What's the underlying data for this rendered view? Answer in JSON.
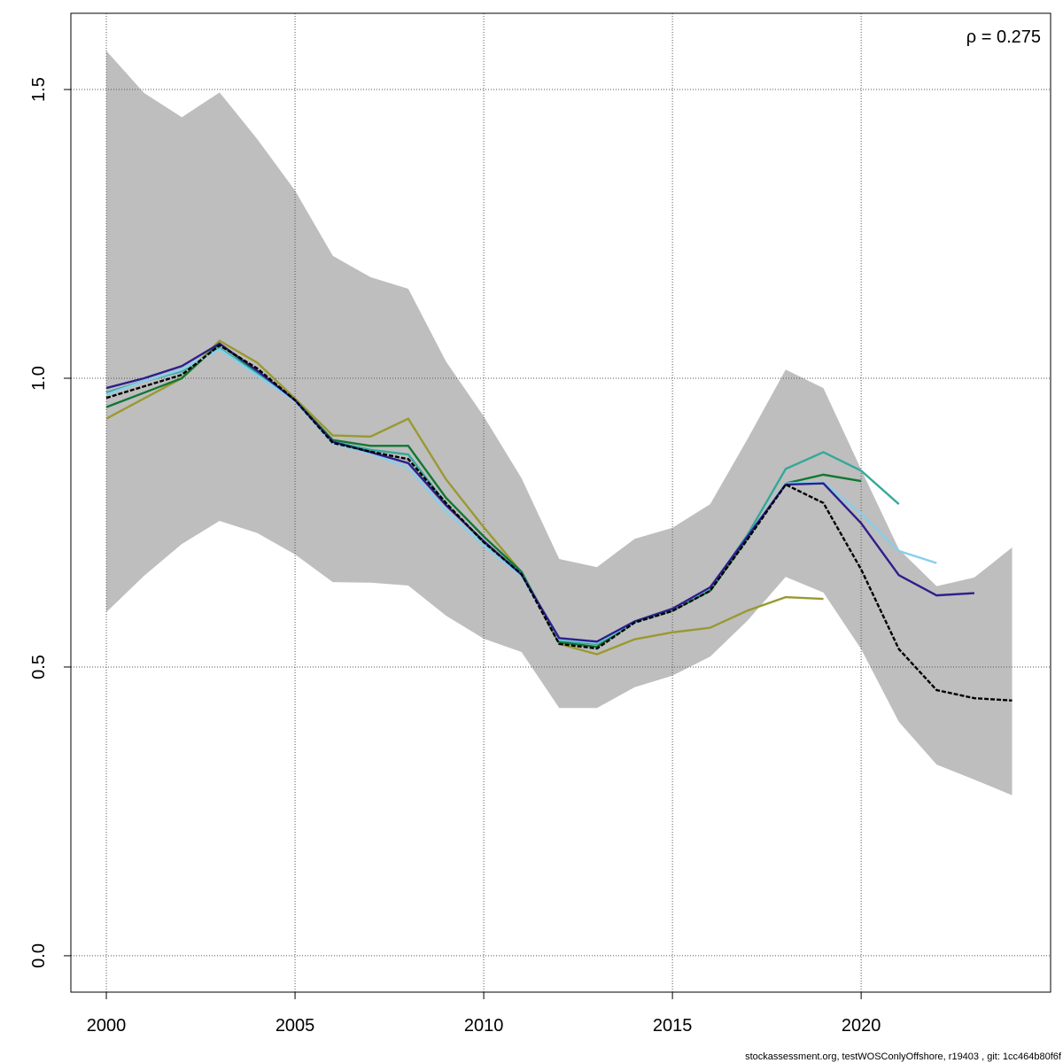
{
  "chart_data": {
    "type": "line",
    "annotation": "ρ = 0.275",
    "footer": "stockassessment.org, testWOSConlyOffshore, r19403 , git: 1cc464b80f6f",
    "x": [
      2000,
      2001,
      2002,
      2003,
      2004,
      2005,
      2006,
      2007,
      2008,
      2009,
      2010,
      2011,
      2012,
      2013,
      2014,
      2015,
      2016,
      2017,
      2018,
      2019,
      2020,
      2021,
      2022,
      2023,
      2024
    ],
    "band": {
      "color": "#bebebe",
      "upper": [
        1.567,
        1.494,
        1.452,
        1.495,
        1.414,
        1.325,
        1.212,
        1.175,
        1.155,
        1.029,
        0.934,
        0.827,
        0.687,
        0.673,
        0.722,
        0.741,
        0.782,
        0.896,
        1.015,
        0.983,
        0.842,
        0.704,
        0.64,
        0.655,
        0.707
      ],
      "lower": [
        0.595,
        0.658,
        0.713,
        0.753,
        0.732,
        0.695,
        0.647,
        0.646,
        0.641,
        0.589,
        0.549,
        0.526,
        0.429,
        0.429,
        0.465,
        0.485,
        0.518,
        0.581,
        0.656,
        0.629,
        0.531,
        0.405,
        0.331,
        0.305,
        0.278
      ]
    },
    "series": [
      {
        "color": "#999933",
        "values": [
          0.93,
          0.965,
          1.0,
          1.065,
          1.027,
          0.965,
          0.901,
          0.899,
          0.93,
          0.825,
          0.742,
          0.664,
          0.54,
          0.522,
          0.548,
          0.56,
          0.568,
          0.598,
          0.621,
          0.618,
          null,
          null,
          null,
          null,
          null
        ]
      },
      {
        "color": "#117733",
        "values": [
          0.95,
          0.975,
          1.0,
          1.06,
          1.01,
          0.962,
          0.893,
          0.883,
          0.883,
          0.793,
          0.726,
          0.665,
          0.543,
          0.535,
          0.578,
          0.598,
          0.632,
          0.724,
          0.818,
          0.833,
          0.822,
          null,
          null,
          null,
          null
        ]
      },
      {
        "color": "#33a89a",
        "values": [
          0.975,
          0.995,
          1.012,
          1.052,
          1.008,
          0.962,
          0.89,
          0.876,
          0.868,
          0.782,
          0.716,
          0.662,
          0.546,
          0.54,
          0.578,
          0.6,
          0.636,
          0.73,
          0.843,
          0.872,
          0.84,
          0.782,
          null,
          null,
          null
        ]
      },
      {
        "color": "#87ceeb",
        "values": [
          0.972,
          0.995,
          1.015,
          1.05,
          1.005,
          0.96,
          0.887,
          0.87,
          0.845,
          0.77,
          0.71,
          0.658,
          0.548,
          0.542,
          0.578,
          0.6,
          0.637,
          0.727,
          0.818,
          0.82,
          0.765,
          0.701,
          0.68,
          null,
          null
        ]
      },
      {
        "color": "#2e1e8c",
        "values": [
          0.983,
          1.0,
          1.021,
          1.06,
          1.013,
          0.962,
          0.89,
          0.872,
          0.853,
          0.78,
          0.718,
          0.66,
          0.55,
          0.544,
          0.579,
          0.601,
          0.638,
          0.727,
          0.816,
          0.818,
          0.749,
          0.659,
          0.624,
          0.628,
          null
        ]
      },
      {
        "color": "#000000",
        "dashed": true,
        "values": [
          0.966,
          0.986,
          1.006,
          1.057,
          1.017,
          0.962,
          0.888,
          0.873,
          0.86,
          0.784,
          0.716,
          0.661,
          0.54,
          0.532,
          0.577,
          0.597,
          0.632,
          0.722,
          0.816,
          0.784,
          0.669,
          0.531,
          0.46,
          0.446,
          0.442
        ]
      }
    ],
    "xlim": [
      1999.06,
      2025.02
    ],
    "ylim": [
      -0.063,
      1.632
    ],
    "xticks": [
      2000,
      2005,
      2010,
      2015,
      2020
    ],
    "yticks": [
      {
        "value": 0,
        "label": "0.0"
      },
      {
        "value": 0.5,
        "label": "0.5"
      },
      {
        "value": 1,
        "label": "1.0"
      },
      {
        "value": 1.5,
        "label": "1.5"
      }
    ],
    "grid": true
  }
}
